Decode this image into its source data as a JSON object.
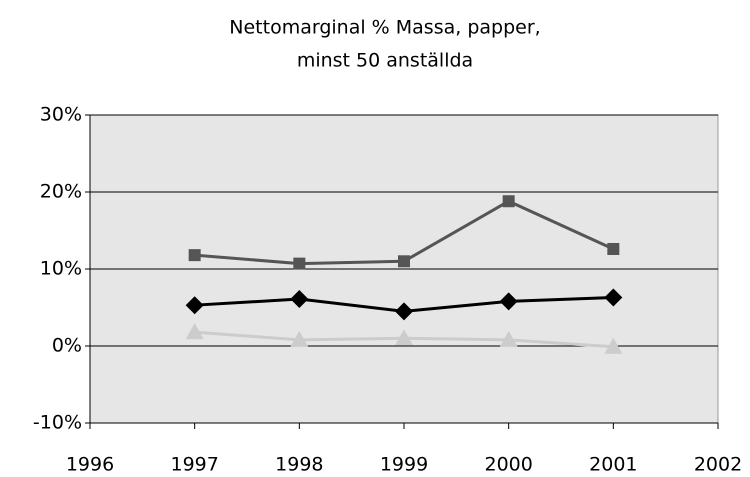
{
  "chart_data": {
    "type": "line",
    "title": [
      "Nettomarginal %  Massa, papper,",
      "minst 50 anställda"
    ],
    "x": [
      1997,
      1998,
      1999,
      2000,
      2001
    ],
    "series": [
      {
        "color": "#555555",
        "marker": "square",
        "values": [
          11.8,
          10.7,
          11.0,
          18.8,
          12.6
        ]
      },
      {
        "color": "#000000",
        "marker": "diamond",
        "values": [
          5.3,
          6.1,
          4.5,
          5.8,
          6.3
        ]
      },
      {
        "color": "#cccccc",
        "marker": "triangle",
        "values": [
          1.8,
          0.8,
          1.0,
          0.8,
          -0.1
        ]
      }
    ],
    "xlim": [
      1996,
      2002
    ],
    "xticks": [
      1996,
      1997,
      1998,
      1999,
      2000,
      2001,
      2002
    ],
    "ylim": [
      -10,
      30
    ],
    "yticks": [
      {
        "value": -10,
        "label": "-10%"
      },
      {
        "value": 0,
        "label": "0%"
      },
      {
        "value": 10,
        "label": "10%"
      },
      {
        "value": 20,
        "label": "20%"
      },
      {
        "value": 30,
        "label": "30%"
      }
    ],
    "grid": true
  }
}
